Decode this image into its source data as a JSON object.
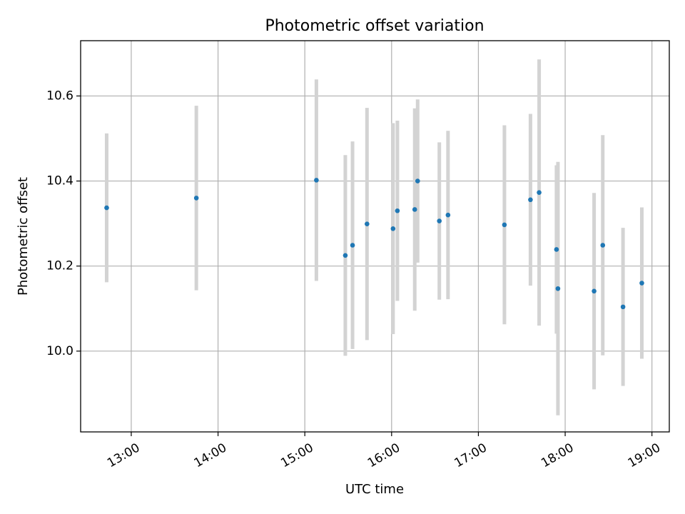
{
  "chart_data": {
    "type": "scatter",
    "title": "Photometric offset variation",
    "xlabel": "UTC time",
    "ylabel": "Photometric offset",
    "x_is_time": true,
    "xlim": [
      "12:25",
      "19:12"
    ],
    "ylim": [
      9.81,
      10.73
    ],
    "x_ticks": [
      "13:00",
      "14:00",
      "15:00",
      "16:00",
      "17:00",
      "18:00",
      "19:00"
    ],
    "y_ticks": [
      10.0,
      10.2,
      10.4,
      10.6
    ],
    "y_tick_labels": [
      "10.0",
      "10.2",
      "10.4",
      "10.6"
    ],
    "grid": true,
    "colors": {
      "point": "#1f77b4",
      "errorbar": "#d3d3d3",
      "grid": "#b0b0b0",
      "axes": "#000000"
    },
    "series": [
      {
        "points": [
          {
            "x": "12:43",
            "y": 10.337,
            "err": 0.175
          },
          {
            "x": "13:45",
            "y": 10.36,
            "err": 0.217
          },
          {
            "x": "15:08",
            "y": 10.402,
            "err": 0.237
          },
          {
            "x": "15:28",
            "y": 10.225,
            "err": 0.236
          },
          {
            "x": "15:33",
            "y": 10.249,
            "err": 0.244
          },
          {
            "x": "15:43",
            "y": 10.299,
            "err": 0.273
          },
          {
            "x": "16:01",
            "y": 10.288,
            "err": 0.248
          },
          {
            "x": "16:04",
            "y": 10.33,
            "err": 0.212
          },
          {
            "x": "16:16",
            "y": 10.333,
            "err": 0.238
          },
          {
            "x": "16:18",
            "y": 10.4,
            "err": 0.192
          },
          {
            "x": "16:33",
            "y": 10.306,
            "err": 0.185
          },
          {
            "x": "16:39",
            "y": 10.32,
            "err": 0.198
          },
          {
            "x": "17:18",
            "y": 10.297,
            "err": 0.234
          },
          {
            "x": "17:36",
            "y": 10.356,
            "err": 0.202
          },
          {
            "x": "17:42",
            "y": 10.373,
            "err": 0.313
          },
          {
            "x": "17:54",
            "y": 10.239,
            "err": 0.198
          },
          {
            "x": "17:55",
            "y": 10.147,
            "err": 0.298
          },
          {
            "x": "18:20",
            "y": 10.141,
            "err": 0.231
          },
          {
            "x": "18:26",
            "y": 10.249,
            "err": 0.259
          },
          {
            "x": "18:40",
            "y": 10.104,
            "err": 0.186
          },
          {
            "x": "18:53",
            "y": 10.16,
            "err": 0.178
          }
        ]
      }
    ]
  }
}
